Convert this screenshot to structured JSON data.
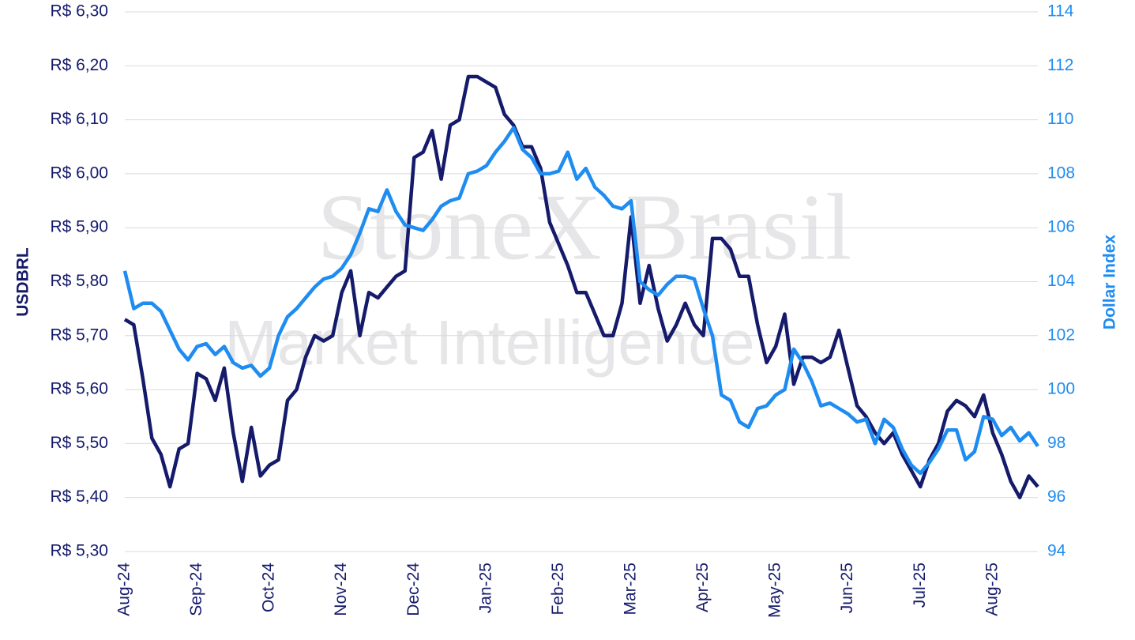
{
  "chart_data": {
    "type": "line",
    "watermark": [
      "StoneX Brasil",
      "Market Intelligence"
    ],
    "y_label": "USDBRL",
    "y2_label": "Dollar Index",
    "grid": true,
    "categories": [
      "Aug-24",
      null,
      null,
      null,
      null,
      null,
      null,
      null,
      "Sep-24",
      null,
      null,
      null,
      null,
      null,
      null,
      null,
      "Oct-24",
      null,
      null,
      null,
      null,
      null,
      null,
      null,
      "Nov-24",
      null,
      null,
      null,
      null,
      null,
      null,
      null,
      "Dec-24",
      null,
      null,
      null,
      null,
      null,
      null,
      null,
      "Jan-25",
      null,
      null,
      null,
      null,
      null,
      null,
      null,
      "Feb-25",
      null,
      null,
      null,
      null,
      null,
      null,
      null,
      "Mar-25",
      null,
      null,
      null,
      null,
      null,
      null,
      null,
      "Apr-25",
      null,
      null,
      null,
      null,
      null,
      null,
      null,
      "May-25",
      null,
      null,
      null,
      null,
      null,
      null,
      null,
      "Jun-25",
      null,
      null,
      null,
      null,
      null,
      null,
      null,
      "Jul-25",
      null,
      null,
      null,
      null,
      null,
      null,
      null,
      "Aug-25",
      null,
      null,
      null,
      null,
      null
    ],
    "ylim": [
      5.3,
      6.3
    ],
    "yticks": [
      {
        "value": 5.3,
        "label": "R$ 5,30"
      },
      {
        "value": 5.4,
        "label": "R$ 5,40"
      },
      {
        "value": 5.5,
        "label": "R$ 5,50"
      },
      {
        "value": 5.6,
        "label": "R$ 5,60"
      },
      {
        "value": 5.7,
        "label": "R$ 5,70"
      },
      {
        "value": 5.8,
        "label": "R$ 5,80"
      },
      {
        "value": 5.9,
        "label": "R$ 5,90"
      },
      {
        "value": 6.0,
        "label": "R$ 6,00"
      },
      {
        "value": 6.1,
        "label": "R$ 6,10"
      },
      {
        "value": 6.2,
        "label": "R$ 6,20"
      },
      {
        "value": 6.3,
        "label": "R$ 6,30"
      }
    ],
    "y2lim": [
      94,
      114
    ],
    "y2ticks": [
      94,
      96,
      98,
      100,
      102,
      104,
      106,
      108,
      110,
      112,
      114
    ],
    "series": [
      {
        "name": "USDBRL",
        "color": "#151a6b",
        "values": [
          5.73,
          5.72,
          5.62,
          5.51,
          5.48,
          5.42,
          5.49,
          5.5,
          5.63,
          5.62,
          5.58,
          5.64,
          5.52,
          5.43,
          5.53,
          5.44,
          5.46,
          5.47,
          5.58,
          5.6,
          5.66,
          5.7,
          5.69,
          5.7,
          5.78,
          5.82,
          5.7,
          5.78,
          5.77,
          5.79,
          5.81,
          5.82,
          6.03,
          6.04,
          6.08,
          5.99,
          6.09,
          6.1,
          6.18,
          6.18,
          6.17,
          6.16,
          6.11,
          6.09,
          6.05,
          6.05,
          6.01,
          5.91,
          5.87,
          5.83,
          5.78,
          5.78,
          5.74,
          5.7,
          5.7,
          5.76,
          5.92,
          5.76,
          5.83,
          5.75,
          5.69,
          5.72,
          5.76,
          5.72,
          5.7,
          5.88,
          5.88,
          5.86,
          5.81,
          5.81,
          5.72,
          5.65,
          5.68,
          5.74,
          5.61,
          5.66,
          5.66,
          5.65,
          5.66,
          5.71,
          5.64,
          5.57,
          5.55,
          5.52,
          5.5,
          5.52,
          5.48,
          5.45,
          5.42,
          5.47,
          5.5,
          5.56,
          5.58,
          5.57,
          5.55,
          5.59,
          5.52,
          5.48,
          5.43,
          5.4,
          5.44,
          5.42
        ]
      },
      {
        "name": "Dollar Index",
        "color": "#1e8cf0",
        "axis": "y2",
        "values": [
          104.4,
          103.0,
          103.2,
          103.2,
          102.9,
          102.2,
          101.5,
          101.1,
          101.6,
          101.7,
          101.3,
          101.6,
          101.0,
          100.8,
          100.9,
          100.5,
          100.8,
          102.0,
          102.7,
          103.0,
          103.4,
          103.8,
          104.1,
          104.2,
          104.5,
          105.0,
          105.8,
          106.7,
          106.6,
          107.4,
          106.6,
          106.1,
          106.0,
          105.9,
          106.3,
          106.8,
          107.0,
          107.1,
          108.0,
          108.1,
          108.3,
          108.8,
          109.2,
          109.7,
          108.9,
          108.6,
          108.0,
          108.0,
          108.1,
          108.8,
          107.8,
          108.2,
          107.5,
          107.2,
          106.8,
          106.7,
          107.0,
          104.0,
          103.7,
          103.5,
          103.9,
          104.2,
          104.2,
          104.1,
          103.0,
          102.0,
          99.8,
          99.6,
          98.8,
          98.6,
          99.3,
          99.4,
          99.8,
          100.0,
          101.5,
          101.0,
          100.3,
          99.4,
          99.5,
          99.3,
          99.1,
          98.8,
          98.9,
          98.0,
          98.9,
          98.6,
          97.8,
          97.2,
          96.9,
          97.3,
          97.8,
          98.5,
          98.5,
          97.4,
          97.7,
          99.0,
          98.9,
          98.3,
          98.6,
          98.1,
          98.4,
          97.9
        ]
      }
    ]
  }
}
